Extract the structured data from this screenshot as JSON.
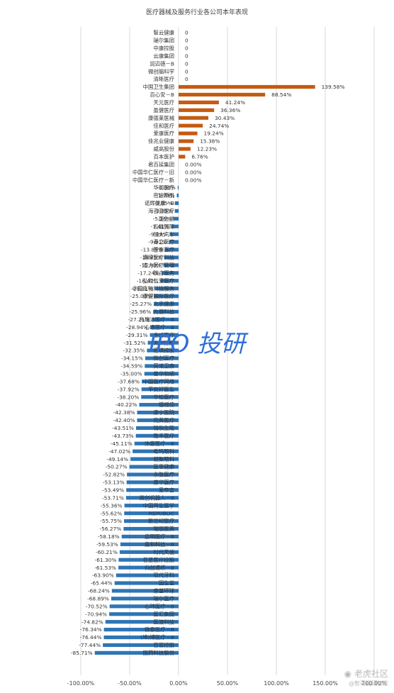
{
  "chart_data": {
    "type": "bar",
    "orientation": "horizontal",
    "title": "医疗器械及服务行业各公司本年表现",
    "xlim": [
      -1.0,
      2.0
    ],
    "x_ticks": [
      "-100.00%",
      "-50.00%",
      "0.00%",
      "50.00%",
      "100.00%",
      "150.00%",
      "200.00%"
    ],
    "grid": true,
    "colors": {
      "positive": "#c55a11",
      "negative": "#2e75b6",
      "grid": "#d9d9d9"
    },
    "categories": [
      "智云健康",
      "瑞尔集团",
      "中康控股",
      "云康集团",
      "润迈德－B",
      "微创脑科学",
      "清晰医疗",
      "中国卫生集团",
      "百心安－B",
      "天元医疗",
      "盈健医疗",
      "康德莱医械",
      "佳和医疗",
      "爱康医疗",
      "佳兆业健康",
      "威高股份",
      "百本医护",
      "君百延集团",
      "中国华仁医疗－旧",
      "中国华仁医疗－新",
      "华润医疗",
      "密迪斯肌",
      "诺辉健康－B",
      "海吉亚医疗",
      "医生堂",
      "云能国际",
      "恒大汽车",
      "春立医疗",
      "慧泰医疗",
      "鹰瞳医疗科技",
      "宏力医疗管理",
      "联合医务",
      "弘和仁爱医疗",
      "中国生物科技服务",
      "康健国际医疗",
      "北京健康",
      "先健科技",
      "先瑞达医疗－B",
      "心通医疗－B",
      "金威医疗",
      "太和控股",
      "德琪控股",
      "微创医疗",
      "英诺卫康",
      "普华和顺",
      "中国医疗网络",
      "平安好医生",
      "华检医疗",
      "德视佳",
      "康宁医院",
      "完美医疗",
      "锦欣生殖",
      "雅禾医疗",
      "沛嘉医疗－B",
      "希玛眼科",
      "朝聚眼科",
      "医思健康",
      "永胜医疗",
      "康华医疗",
      "爱帝宫",
      "微创机器人－B",
      "中国再生医学",
      "REPUBLIC",
      "新世纪医疗",
      "瑞丽医美",
      "启明医疗－B",
      "嘉和科技－B",
      "时代天使",
      "巨星医疗控股",
      "归创通桥－B",
      "现代牙科",
      "固生堂",
      "康基环球",
      "瑞尔医疗",
      "心玮医疗－B",
      "医汇集团",
      "医渡科技",
      "微泰医疗－B",
      "(坤)博医疗－B",
      "百富控股",
      "国药科技股份"
    ],
    "values": [
      0,
      0,
      0,
      0,
      0,
      0,
      0,
      1.3958,
      0.8854,
      0.4124,
      0.3636,
      0.3043,
      0.2474,
      0.1924,
      0.1538,
      0.1223,
      0.0676,
      0,
      0,
      0,
      -0.0086,
      -0.0179,
      -0.0385,
      -0.0389,
      -0.0526,
      -0.0741,
      -0.0909,
      -0.0991,
      -0.1385,
      -0.1475,
      -0.1548,
      -0.1724,
      -0.1842,
      -0.2391,
      -0.25,
      -0.2527,
      -0.2596,
      -0.2721,
      -0.2894,
      -0.2931,
      -0.3152,
      -0.3235,
      -0.3415,
      -0.3459,
      -0.35,
      -0.3768,
      -0.3792,
      -0.382,
      -0.4022,
      -0.4238,
      -0.424,
      -0.4351,
      -0.4373,
      -0.4511,
      -0.4702,
      -0.4914,
      -0.5027,
      -0.5282,
      -0.5313,
      -0.5349,
      -0.5371,
      -0.5536,
      -0.5562,
      -0.5575,
      -0.5627,
      -0.5818,
      -0.5953,
      -0.6021,
      -0.613,
      -0.6153,
      -0.639,
      -0.6544,
      -0.6824,
      -0.6889,
      -0.7052,
      -0.7094,
      -0.7482,
      -0.7634,
      -0.7644,
      -0.7744,
      -0.8571
    ],
    "value_labels": [
      "0",
      "0",
      "0",
      "0",
      "0",
      "0",
      "0",
      "139.58%",
      "88.54%",
      "41.24%",
      "36.36%",
      "30.43%",
      "24.74%",
      "19.24%",
      "15.38%",
      "12.23%",
      "6.76%",
      "0.00%",
      "0.00%",
      "0.00%",
      "-0.86%",
      "-1.79%",
      "-3.85%",
      "-3.89%",
      "-5.26%",
      "-7.41%",
      "-9.09%",
      "-9.91%",
      "-13.85%",
      "-14.75%",
      "-15.48%",
      "-17.24%",
      "-18.42%",
      "-23.91%",
      "-25.00%",
      "-25.27%",
      "-25.96%",
      "-27.21%",
      "-28.94%",
      "-29.31%",
      "-31.52%",
      "-32.35%",
      "-34.15%",
      "-34.59%",
      "-35.00%",
      "-37.68%",
      "-37.92%",
      "-38.20%",
      "-40.22%",
      "-42.38%",
      "-42.40%",
      "-43.51%",
      "-43.73%",
      "-45.11%",
      "-47.02%",
      "-49.14%",
      "-50.27%",
      "-52.82%",
      "-53.13%",
      "-53.49%",
      "-53.71%",
      "-55.36%",
      "-55.62%",
      "-55.75%",
      "-56.27%",
      "-58.18%",
      "-59.53%",
      "-60.21%",
      "-61.30%",
      "-61.53%",
      "-63.90%",
      "-65.44%",
      "-68.24%",
      "-68.89%",
      "-70.52%",
      "-70.94%",
      "-74.82%",
      "-76.34%",
      "-76.44%",
      "-77.44%",
      "-85.71%"
    ]
  },
  "watermark": {
    "text": "IPO 投研",
    "color": "#2e6fd6"
  },
  "corner_watermark": {
    "brand": "老虎社区",
    "sub": "@智哥投研智能"
  }
}
